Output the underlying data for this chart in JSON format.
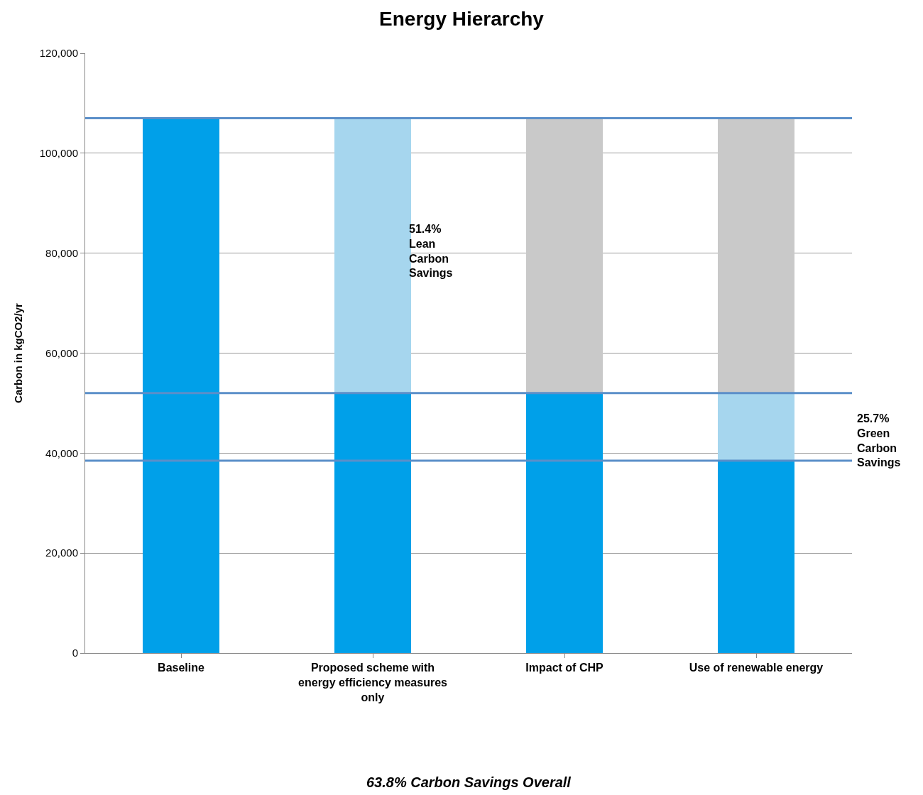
{
  "chart_data": {
    "type": "bar",
    "title": "Energy Hierarchy",
    "ylabel": "Carbon in kgCO2/yr",
    "categories": [
      "Baseline",
      "Proposed scheme with energy efficiency measures only",
      "Impact of CHP",
      "Use of renewable energy"
    ],
    "stacked": true,
    "series": [
      {
        "color": "#00a0e9",
        "values": [
          107000,
          52000,
          52000,
          38500
        ]
      },
      {
        "color": "#a6d6ee",
        "values": [
          null,
          55000,
          null,
          13500
        ]
      },
      {
        "color": "#c9c9c9",
        "values": [
          null,
          null,
          55000,
          55000
        ]
      }
    ],
    "ylim": [
      0,
      120000
    ],
    "yticks": [
      {
        "value": 0,
        "label": "0"
      },
      {
        "value": 20000,
        "label": "20,000"
      },
      {
        "value": 40000,
        "label": "40,000"
      },
      {
        "value": 60000,
        "label": "60,000"
      },
      {
        "value": 80000,
        "label": "80,000"
      },
      {
        "value": 100000,
        "label": "100,000"
      },
      {
        "value": 120000,
        "label": "120,000"
      }
    ],
    "grid": "y",
    "ref_lines": [
      {
        "axis": "y",
        "value": 107000,
        "color": "#5b8fc9"
      },
      {
        "axis": "y",
        "value": 52000,
        "color": "#5b8fc9"
      },
      {
        "axis": "y",
        "value": 38500,
        "color": "#5b8fc9"
      }
    ],
    "annotations": [
      "51.4%\nLean\nCarbon\nSavings",
      "25.7%\nGreen\nCarbon\nSavings",
      "63.8% Carbon Savings Overall"
    ]
  }
}
